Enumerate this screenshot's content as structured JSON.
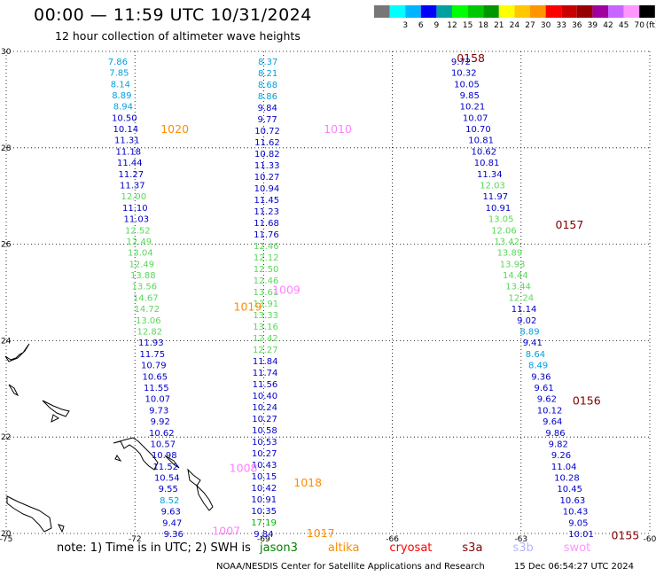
{
  "header": {
    "title": "00:00 — 11:59 UTC 10/31/2024",
    "subtitle": "12 hour collection of altimeter wave heights"
  },
  "legend": {
    "units": "(ft)",
    "bins": [
      {
        "label": "",
        "color": "#777777"
      },
      {
        "label": "3",
        "color": "#00ffff"
      },
      {
        "label": "6",
        "color": "#00b4ff"
      },
      {
        "label": "9",
        "color": "#0000ff"
      },
      {
        "label": "12",
        "color": "#00a0a0"
      },
      {
        "label": "15",
        "color": "#00ff00"
      },
      {
        "label": "18",
        "color": "#00c800"
      },
      {
        "label": "21",
        "color": "#009600"
      },
      {
        "label": "24",
        "color": "#ffff00"
      },
      {
        "label": "27",
        "color": "#ffc800"
      },
      {
        "label": "30",
        "color": "#ff9600"
      },
      {
        "label": "33",
        "color": "#ff0000"
      },
      {
        "label": "36",
        "color": "#c80000"
      },
      {
        "label": "39",
        "color": "#960000"
      },
      {
        "label": "42",
        "color": "#a000a0"
      },
      {
        "label": "45",
        "color": "#c864ff"
      },
      {
        "label": "70",
        "color": "#ff96ff"
      },
      {
        "label": "",
        "color": "#000000"
      }
    ]
  },
  "map": {
    "lon_range": [
      -75,
      -60
    ],
    "lat_range": [
      20,
      30
    ],
    "lon_ticks": [
      -75,
      -72,
      -69,
      -66,
      -63,
      -60
    ],
    "lat_ticks": [
      20,
      22,
      24,
      26,
      28,
      30
    ],
    "grid_lines": "dotted",
    "pass_labels": [
      {
        "text": "1020",
        "lon": -71.4,
        "lat": 28.38,
        "color": "#ff8c00"
      },
      {
        "text": "1010",
        "lon": -67.6,
        "lat": 28.38,
        "color": "#ff80ff"
      },
      {
        "text": "1009",
        "lon": -68.8,
        "lat": 25.05,
        "color": "#ff80ff"
      },
      {
        "text": "1019",
        "lon": -69.7,
        "lat": 24.7,
        "color": "#ff8c00"
      },
      {
        "text": "1018",
        "lon": -68.3,
        "lat": 21.05,
        "color": "#ff8c00"
      },
      {
        "text": "1017",
        "lon": -68.0,
        "lat": 20.0,
        "color": "#ff8c00"
      },
      {
        "text": "1007",
        "lon": -70.2,
        "lat": 20.05,
        "color": "#ff80ff"
      },
      {
        "text": "1008",
        "lon": -69.8,
        "lat": 21.35,
        "color": "#ff80ff"
      },
      {
        "text": "0158",
        "lon": -64.5,
        "lat": 29.85,
        "color": "#800000"
      },
      {
        "text": "0157",
        "lon": -62.2,
        "lat": 26.4,
        "color": "#800000"
      },
      {
        "text": "0156",
        "lon": -61.8,
        "lat": 22.75,
        "color": "#800000"
      },
      {
        "text": "0155",
        "lon": -60.9,
        "lat": 19.95,
        "color": "#800000"
      }
    ],
    "tracks": [
      {
        "name": "pass 1020",
        "start": [
          -72.4,
          29.8
        ],
        "end": [
          -71.1,
          20.0
        ],
        "values": [
          "7.86",
          "7.85",
          "8.14",
          "8.89",
          "8.94",
          "10.50",
          "10.14",
          "11.31",
          "11.18",
          "11.44",
          "11.27",
          "11.37",
          "12.00",
          "11.10",
          "11.03",
          "12.52",
          "12.49",
          "13.04",
          "12.49",
          "13.88",
          "13.56",
          "14.67",
          "14.72",
          "13.06",
          "12.82",
          "11.93",
          "11.75",
          "10.79",
          "10.65",
          "11.55",
          "10.07",
          "9.73",
          "9.92",
          "10.62",
          "10.57",
          "10.98",
          "11.52",
          "10.54",
          "9.55",
          "8.52",
          "9.63",
          "9.47",
          "9.36"
        ]
      },
      {
        "name": "pass 1010",
        "start": [
          -68.9,
          29.8
        ],
        "end": [
          -69.0,
          20.0
        ],
        "values": [
          "8.37",
          "8.21",
          "8.68",
          "8.86",
          "9.84",
          "9.77",
          "10.72",
          "11.62",
          "10.82",
          "11.33",
          "10.27",
          "10.94",
          "11.45",
          "11.23",
          "11.68",
          "11.76",
          "12.46",
          "12.12",
          "12.50",
          "12.46",
          "13.61",
          "13.91",
          "13.33",
          "13.16",
          "12.42",
          "12.27",
          "11.84",
          "11.74",
          "11.56",
          "10.40",
          "10.24",
          "10.27",
          "10.58",
          "10.53",
          "10.27",
          "10.43",
          "10.15",
          "10.42",
          "10.91",
          "10.35",
          "17.19",
          "9.84"
        ]
      },
      {
        "name": "pass 0158",
        "start": [
          -64.4,
          29.8
        ],
        "end": [
          -61.6,
          20.0
        ],
        "values": [
          "9.72",
          "10.32",
          "10.05",
          "9.85",
          "10.21",
          "10.07",
          "10.70",
          "10.81",
          "10.62",
          "10.81",
          "11.34",
          "12.03",
          "11.97",
          "10.91",
          "13.05",
          "12.06",
          "13.42",
          "13.89",
          "13.93",
          "14.44",
          "13.44",
          "12.24",
          "11.14",
          "9.02",
          "8.89",
          "9.41",
          "8.64",
          "8.49",
          "9.36",
          "9.61",
          "9.62",
          "10.12",
          "9.64",
          "9.86",
          "9.82",
          "9.26",
          "11.04",
          "10.28",
          "10.45",
          "10.63",
          "10.43",
          "9.05",
          "10.01"
        ]
      }
    ]
  },
  "footer": {
    "note_prefix": "note:  1) Time is in UTC;  2) SWH is",
    "satellites": [
      {
        "name": "jason3",
        "color": "#008000"
      },
      {
        "name": "altika",
        "color": "#ff8c00"
      },
      {
        "name": "cryosat",
        "color": "#ff0000"
      },
      {
        "name": "s3a",
        "color": "#800000"
      },
      {
        "name": "s3b",
        "color": "#b4b4ff"
      },
      {
        "name": "swot",
        "color": "#ff96ff"
      }
    ],
    "credit": "NOAA/NESDIS Center for Satellite Applications and Research",
    "generated": "15 Dec 06:54:27 UTC 2024"
  }
}
